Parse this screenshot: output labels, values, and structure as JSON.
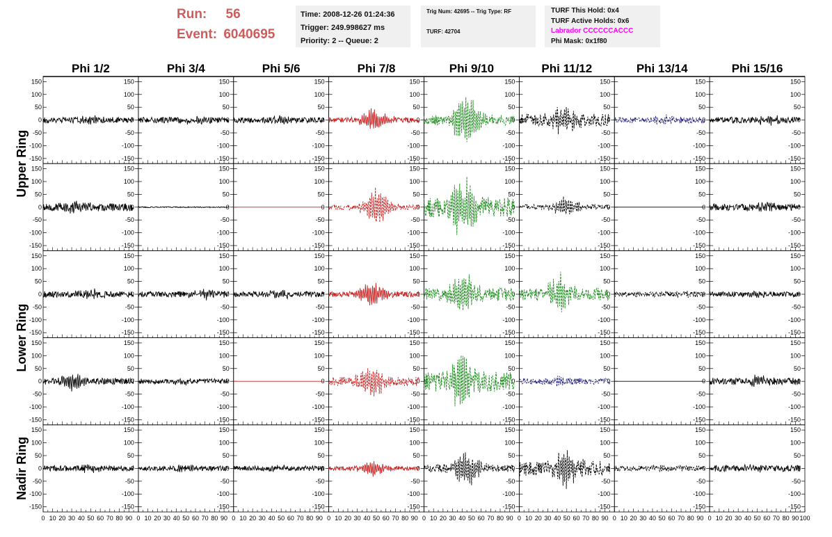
{
  "header": {
    "run_label": "Run:",
    "run_value": "56",
    "event_label": "Event:",
    "event_value": "6040695",
    "time": "Time: 2008-12-26 01:24:36",
    "trigger": "Trigger: 249.998627 ms",
    "priority": "Priority: 2 -- Queue: 2",
    "trig_num": "Trig Num: 42695 -- Trig Type: RF",
    "turf": "TURF: 42704",
    "turf_this_hold": "TURF This Hold: 0x4",
    "turf_active_holds": "TURF Active Holds: 0x6",
    "labrador": "Labrador CCCCCCACCC",
    "phi_mask": "Phi Mask: 0x1f80"
  },
  "colors": {
    "header_red": "#cd5c5c",
    "labrador_magenta": "#ff00ff",
    "black": "#000000",
    "red": "#c81e1e",
    "green": "#1e8c1e",
    "navy": "#1e1e78"
  },
  "chart_data": {
    "type": "line",
    "columns": [
      "Phi 1/2",
      "Phi 3/4",
      "Phi 5/6",
      "Phi 7/8",
      "Phi 9/10",
      "Phi 11/12",
      "Phi 13/14",
      "Phi 15/16"
    ],
    "row_labels": [
      {
        "text": "Upper Ring",
        "rows": [
          0,
          1
        ]
      },
      {
        "text": "Lower Ring",
        "rows": [
          2,
          3
        ]
      },
      {
        "text": "Nadir Ring",
        "rows": [
          4,
          4
        ]
      }
    ],
    "ylim": [
      -170,
      170
    ],
    "y_ticks": [
      -150,
      -100,
      -50,
      0,
      50,
      100,
      150
    ],
    "xlim": [
      0,
      100
    ],
    "x_ticks": [
      "0",
      "10",
      "20",
      "30",
      "40",
      "50",
      "60",
      "70",
      "80",
      "90",
      "100"
    ],
    "trace_x_range": [
      0,
      95
    ],
    "rows": [
      [
        {
          "color": "black",
          "dashed": false,
          "amp": 11,
          "peak": 14,
          "center": 50,
          "seed": 11
        },
        {
          "color": "black",
          "dashed": false,
          "amp": 12,
          "peak": 16,
          "center": 60,
          "seed": 12
        },
        {
          "color": "black",
          "dashed": false,
          "amp": 11,
          "peak": 14,
          "center": 50,
          "seed": 13
        },
        {
          "color": "red",
          "dashed": false,
          "amp": 10,
          "peak": 55,
          "center": 48,
          "seed": 14
        },
        {
          "color": "green",
          "dashed": true,
          "amp": 20,
          "peak": 135,
          "center": 44,
          "seed": 15
        },
        {
          "color": "black",
          "dashed": true,
          "amp": 25,
          "peak": 60,
          "center": 46,
          "seed": 16
        },
        {
          "color": "navy",
          "dashed": true,
          "amp": 12,
          "peak": 15,
          "center": 50,
          "seed": 17
        },
        {
          "color": "black",
          "dashed": false,
          "amp": 12,
          "peak": 18,
          "center": 60,
          "seed": 18
        }
      ],
      [
        {
          "color": "black",
          "dashed": false,
          "amp": 15,
          "peak": 25,
          "center": 35,
          "seed": 21
        },
        {
          "color": "black",
          "dashed": false,
          "amp": 2,
          "peak": 0,
          "center": 50,
          "seed": 22
        },
        {
          "color": "red",
          "dashed": false,
          "amp": 0,
          "peak": 0,
          "center": 50,
          "seed": 23
        },
        {
          "color": "red",
          "dashed": true,
          "amp": 10,
          "peak": 90,
          "center": 50,
          "seed": 24
        },
        {
          "color": "green",
          "dashed": true,
          "amp": 40,
          "peak": 135,
          "center": 40,
          "seed": 25
        },
        {
          "color": "black",
          "dashed": true,
          "amp": 10,
          "peak": 40,
          "center": 48,
          "seed": 26
        },
        {
          "color": "black",
          "dashed": false,
          "amp": 0,
          "peak": 0,
          "center": 50,
          "seed": 27
        },
        {
          "color": "black",
          "dashed": false,
          "amp": 13,
          "peak": 18,
          "center": 55,
          "seed": 28
        }
      ],
      [
        {
          "color": "black",
          "dashed": false,
          "amp": 12,
          "peak": 14,
          "center": 50,
          "seed": 31
        },
        {
          "color": "black",
          "dashed": false,
          "amp": 11,
          "peak": 20,
          "center": 70,
          "seed": 32
        },
        {
          "color": "black",
          "dashed": false,
          "amp": 11,
          "peak": 14,
          "center": 50,
          "seed": 33
        },
        {
          "color": "red",
          "dashed": false,
          "amp": 10,
          "peak": 60,
          "center": 45,
          "seed": 34
        },
        {
          "color": "green",
          "dashed": true,
          "amp": 25,
          "peak": 110,
          "center": 42,
          "seed": 35
        },
        {
          "color": "green",
          "dashed": true,
          "amp": 25,
          "peak": 75,
          "center": 42,
          "seed": 36
        },
        {
          "color": "black",
          "dashed": true,
          "amp": 10,
          "peak": 15,
          "center": 80,
          "seed": 37
        },
        {
          "color": "black",
          "dashed": false,
          "amp": 10,
          "peak": 10,
          "center": 50,
          "seed": 38
        }
      ],
      [
        {
          "color": "black",
          "dashed": false,
          "amp": 12,
          "peak": 40,
          "center": 30,
          "seed": 41
        },
        {
          "color": "black",
          "dashed": false,
          "amp": 10,
          "peak": 12,
          "center": 50,
          "seed": 42
        },
        {
          "color": "red",
          "dashed": false,
          "amp": 0,
          "peak": 0,
          "center": 50,
          "seed": 43
        },
        {
          "color": "red",
          "dashed": true,
          "amp": 18,
          "peak": 75,
          "center": 45,
          "seed": 44
        },
        {
          "color": "green",
          "dashed": true,
          "amp": 40,
          "peak": 120,
          "center": 40,
          "seed": 45
        },
        {
          "color": "navy",
          "dashed": true,
          "amp": 12,
          "peak": 20,
          "center": 40,
          "seed": 46
        },
        {
          "color": "black",
          "dashed": false,
          "amp": 0,
          "peak": 0,
          "center": 50,
          "seed": 47
        },
        {
          "color": "black",
          "dashed": false,
          "amp": 14,
          "peak": 18,
          "center": 50,
          "seed": 48
        }
      ],
      [
        {
          "color": "black",
          "dashed": false,
          "amp": 11,
          "peak": 12,
          "center": 50,
          "seed": 51
        },
        {
          "color": "black",
          "dashed": false,
          "amp": 10,
          "peak": 10,
          "center": 50,
          "seed": 52
        },
        {
          "color": "black",
          "dashed": false,
          "amp": 10,
          "peak": 10,
          "center": 50,
          "seed": 53
        },
        {
          "color": "red",
          "dashed": false,
          "amp": 8,
          "peak": 40,
          "center": 47,
          "seed": 54
        },
        {
          "color": "black",
          "dashed": true,
          "amp": 15,
          "peak": 90,
          "center": 45,
          "seed": 55
        },
        {
          "color": "black",
          "dashed": true,
          "amp": 30,
          "peak": 85,
          "center": 48,
          "seed": 56
        },
        {
          "color": "black",
          "dashed": true,
          "amp": 10,
          "peak": 12,
          "center": 50,
          "seed": 57
        },
        {
          "color": "black",
          "dashed": false,
          "amp": 12,
          "peak": 12,
          "center": 50,
          "seed": 58
        }
      ]
    ]
  }
}
